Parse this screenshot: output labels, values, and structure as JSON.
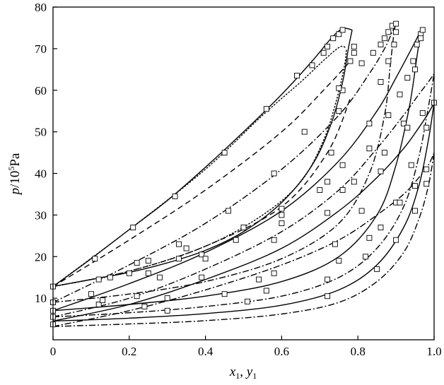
{
  "chart_data": {
    "type": "line",
    "title": "",
    "xlabel": {
      "main": "x",
      "sub1": "1",
      "sep": ", ",
      "main2": "y",
      "sub2": "1"
    },
    "ylabel": {
      "italic": "p",
      "rest": "/10",
      "sup": "5",
      "unit": "Pa"
    },
    "xlim": [
      0,
      1.0
    ],
    "ylim": [
      0,
      80
    ],
    "xticks": [
      "0",
      "0.2",
      "0.4",
      "0.6",
      "0.8",
      "1.0"
    ],
    "yticks": [
      "10",
      "20",
      "30",
      "40",
      "50",
      "60",
      "70",
      "80"
    ],
    "grid": false,
    "legend": "none",
    "series": [
      {
        "style": "solid",
        "bubble": [
          [
            0,
            12.8
          ],
          [
            0.1,
            14.5
          ],
          [
            0.2,
            16.2
          ],
          [
            0.3,
            18.5
          ],
          [
            0.4,
            21.5
          ],
          [
            0.5,
            26
          ],
          [
            0.6,
            33
          ],
          [
            0.68,
            42
          ],
          [
            0.73,
            52
          ],
          [
            0.76,
            62
          ],
          [
            0.775,
            70
          ],
          [
            0.785,
            74.5
          ]
        ],
        "dew": [
          [
            0,
            12.8
          ],
          [
            0.1,
            19.5
          ],
          [
            0.2,
            26.5
          ],
          [
            0.3,
            33.5
          ],
          [
            0.4,
            41.5
          ],
          [
            0.5,
            50
          ],
          [
            0.6,
            59
          ],
          [
            0.68,
            67
          ],
          [
            0.73,
            72.5
          ],
          [
            0.76,
            74.8
          ],
          [
            0.785,
            74.5
          ]
        ]
      },
      {
        "style": "dotted",
        "bubble": [
          [
            0,
            12.8
          ],
          [
            0.2,
            16.5
          ],
          [
            0.4,
            22.5
          ],
          [
            0.55,
            30
          ],
          [
            0.65,
            38
          ],
          [
            0.71,
            48
          ],
          [
            0.745,
            58
          ],
          [
            0.765,
            66
          ],
          [
            0.77,
            70
          ]
        ],
        "dew": [
          [
            0,
            12.8
          ],
          [
            0.2,
            26.5
          ],
          [
            0.4,
            41
          ],
          [
            0.55,
            54
          ],
          [
            0.65,
            62
          ],
          [
            0.72,
            68
          ],
          [
            0.755,
            70.5
          ],
          [
            0.77,
            70
          ]
        ]
      },
      {
        "style": "dashed",
        "bubble": [
          [
            0,
            12.8
          ],
          [
            0.2,
            16.5
          ],
          [
            0.4,
            22.5
          ],
          [
            0.6,
            32
          ],
          [
            0.72,
            45
          ],
          [
            0.78,
            58
          ]
        ],
        "dew": [
          [
            0,
            12.8
          ],
          [
            0.2,
            24
          ],
          [
            0.4,
            36
          ],
          [
            0.6,
            50
          ],
          [
            0.72,
            61
          ],
          [
            0.78,
            67
          ]
        ]
      },
      {
        "style": "dashdot",
        "bubble": [
          [
            0,
            9
          ],
          [
            0.2,
            11
          ],
          [
            0.4,
            14
          ],
          [
            0.6,
            19.5
          ],
          [
            0.75,
            28
          ],
          [
            0.83,
            40
          ],
          [
            0.87,
            54
          ],
          [
            0.885,
            66
          ],
          [
            0.895,
            74
          ],
          [
            0.9,
            75.8
          ]
        ],
        "dew": [
          [
            0,
            9
          ],
          [
            0.2,
            18
          ],
          [
            0.4,
            28
          ],
          [
            0.6,
            41
          ],
          [
            0.75,
            54
          ],
          [
            0.83,
            64
          ],
          [
            0.87,
            70
          ],
          [
            0.89,
            74
          ],
          [
            0.9,
            75.8
          ]
        ]
      },
      {
        "style": "solid",
        "bubble": [
          [
            0,
            7
          ],
          [
            0.2,
            8.5
          ],
          [
            0.4,
            10.5
          ],
          [
            0.6,
            14
          ],
          [
            0.75,
            20
          ],
          [
            0.85,
            30
          ],
          [
            0.9,
            42
          ],
          [
            0.935,
            56
          ],
          [
            0.955,
            68
          ],
          [
            0.965,
            74.5
          ]
        ],
        "dew": [
          [
            0,
            7
          ],
          [
            0.2,
            13.5
          ],
          [
            0.4,
            21
          ],
          [
            0.6,
            31
          ],
          [
            0.75,
            43
          ],
          [
            0.85,
            55
          ],
          [
            0.9,
            63
          ],
          [
            0.935,
            69
          ],
          [
            0.955,
            72.5
          ],
          [
            0.965,
            74.5
          ]
        ]
      },
      {
        "style": "dashdot",
        "bubble": [
          [
            0,
            5.5
          ],
          [
            0.2,
            6.5
          ],
          [
            0.4,
            8
          ],
          [
            0.6,
            10.5
          ],
          [
            0.75,
            15
          ],
          [
            0.85,
            22
          ],
          [
            0.92,
            32
          ],
          [
            0.96,
            44
          ],
          [
            0.985,
            56
          ],
          [
            1.0,
            64
          ]
        ],
        "dew": [
          [
            0,
            5.5
          ],
          [
            0.2,
            10
          ],
          [
            0.4,
            17
          ],
          [
            0.6,
            26
          ],
          [
            0.75,
            36
          ],
          [
            0.85,
            46
          ],
          [
            0.92,
            54
          ],
          [
            0.96,
            59
          ],
          [
            0.985,
            62
          ],
          [
            1.0,
            64
          ]
        ]
      },
      {
        "style": "solid",
        "bubble": [
          [
            0,
            4.5
          ],
          [
            0.2,
            5.2
          ],
          [
            0.4,
            6.3
          ],
          [
            0.6,
            8.3
          ],
          [
            0.75,
            12
          ],
          [
            0.85,
            18
          ],
          [
            0.92,
            27
          ],
          [
            0.96,
            37
          ],
          [
            0.985,
            48
          ],
          [
            1.0,
            57
          ]
        ],
        "dew": [
          [
            0,
            4.5
          ],
          [
            0.2,
            8.5
          ],
          [
            0.4,
            14.5
          ],
          [
            0.6,
            22
          ],
          [
            0.75,
            31
          ],
          [
            0.85,
            39
          ],
          [
            0.92,
            46
          ],
          [
            0.96,
            51
          ],
          [
            0.985,
            54.5
          ],
          [
            1.0,
            57
          ]
        ]
      },
      {
        "style": "dashdot",
        "bubble": [
          [
            0,
            3.2
          ],
          [
            0.2,
            3.8
          ],
          [
            0.4,
            4.6
          ],
          [
            0.6,
            6.2
          ],
          [
            0.75,
            9
          ],
          [
            0.85,
            14
          ],
          [
            0.92,
            21
          ],
          [
            0.96,
            29
          ],
          [
            0.985,
            37
          ],
          [
            1.0,
            45
          ]
        ],
        "dew": [
          [
            0,
            3.2
          ],
          [
            0.2,
            7
          ],
          [
            0.4,
            12
          ],
          [
            0.6,
            18
          ],
          [
            0.75,
            24
          ],
          [
            0.85,
            30
          ],
          [
            0.92,
            35
          ],
          [
            0.96,
            39
          ],
          [
            0.985,
            42
          ],
          [
            1.0,
            45
          ]
        ]
      }
    ],
    "markers": [
      [
        0,
        12.8
      ],
      [
        0.11,
        19.5
      ],
      [
        0.21,
        27
      ],
      [
        0.32,
        34.5
      ],
      [
        0.45,
        45
      ],
      [
        0.56,
        55.5
      ],
      [
        0.64,
        63.5
      ],
      [
        0.68,
        66
      ],
      [
        0.71,
        69
      ],
      [
        0.72,
        70.5
      ],
      [
        0.735,
        72.5
      ],
      [
        0.75,
        73.5
      ],
      [
        0.76,
        74.5
      ],
      [
        0.79,
        70.5
      ],
      [
        0.79,
        69
      ],
      [
        0.78,
        67
      ],
      [
        0.76,
        60
      ],
      [
        0.75,
        55
      ],
      [
        0.73,
        45
      ],
      [
        0.7,
        36
      ],
      [
        0.6,
        30
      ],
      [
        0.5,
        27
      ],
      [
        0.35,
        22
      ],
      [
        0.22,
        18.5
      ],
      [
        0.12,
        14.5
      ],
      [
        0,
        9
      ],
      [
        0.15,
        15
      ],
      [
        0.25,
        19
      ],
      [
        0.33,
        23
      ],
      [
        0.46,
        31
      ],
      [
        0.58,
        40
      ],
      [
        0.66,
        50
      ],
      [
        0.75,
        60.5
      ],
      [
        0.81,
        66.5
      ],
      [
        0.84,
        69
      ],
      [
        0.86,
        71
      ],
      [
        0.87,
        72.5
      ],
      [
        0.88,
        74
      ],
      [
        0.89,
        75.5
      ],
      [
        0.9,
        76
      ],
      [
        0.9,
        74
      ],
      [
        0.895,
        71
      ],
      [
        0.88,
        67
      ],
      [
        0.86,
        62
      ],
      [
        0.83,
        52
      ],
      [
        0.76,
        42
      ],
      [
        0.72,
        38
      ],
      [
        0.6,
        28
      ],
      [
        0.48,
        24
      ],
      [
        0.33,
        19.5
      ],
      [
        0.2,
        16
      ],
      [
        0,
        7
      ],
      [
        0.1,
        11
      ],
      [
        0.25,
        16
      ],
      [
        0.39,
        20.5
      ],
      [
        0.6,
        31.5
      ],
      [
        0.76,
        36
      ],
      [
        0.83,
        46
      ],
      [
        0.88,
        54
      ],
      [
        0.91,
        59
      ],
      [
        0.93,
        63
      ],
      [
        0.945,
        67
      ],
      [
        0.955,
        71
      ],
      [
        0.965,
        73.5
      ],
      [
        0.97,
        74.5
      ],
      [
        0.965,
        72.5
      ],
      [
        0.95,
        65
      ],
      [
        0.92,
        52
      ],
      [
        0.86,
        40.5
      ],
      [
        0.81,
        31
      ],
      [
        0.74,
        23
      ],
      [
        0.58,
        16
      ],
      [
        0.39,
        15
      ],
      [
        0.22,
        10.5
      ],
      [
        0.12,
        8.5
      ],
      [
        0,
        5.5
      ],
      [
        0.13,
        9.5
      ],
      [
        0.28,
        15
      ],
      [
        0.4,
        19.5
      ],
      [
        0.58,
        24
      ],
      [
        0.72,
        30.5
      ],
      [
        0.79,
        38
      ],
      [
        0.87,
        45
      ],
      [
        0.93,
        51
      ],
      [
        0.97,
        54.5
      ],
      [
        1.0,
        57
      ],
      [
        0.98,
        51
      ],
      [
        0.94,
        42
      ],
      [
        0.9,
        33
      ],
      [
        0.83,
        24.5
      ],
      [
        0.75,
        19
      ],
      [
        0.54,
        14.5
      ],
      [
        0.3,
        10
      ],
      [
        0,
        3.7
      ],
      [
        0.24,
        8
      ],
      [
        0.45,
        11
      ],
      [
        0.56,
        11.8
      ],
      [
        0.72,
        14.5
      ],
      [
        0.82,
        20
      ],
      [
        0.86,
        27
      ],
      [
        0.91,
        33
      ],
      [
        0.95,
        37
      ],
      [
        0.98,
        41
      ],
      [
        0.98,
        37.5
      ],
      [
        0.95,
        31
      ],
      [
        0.9,
        24
      ],
      [
        0.85,
        17
      ],
      [
        0.72,
        10.5
      ],
      [
        0.51,
        9.2
      ],
      [
        0.3,
        7
      ]
    ]
  }
}
